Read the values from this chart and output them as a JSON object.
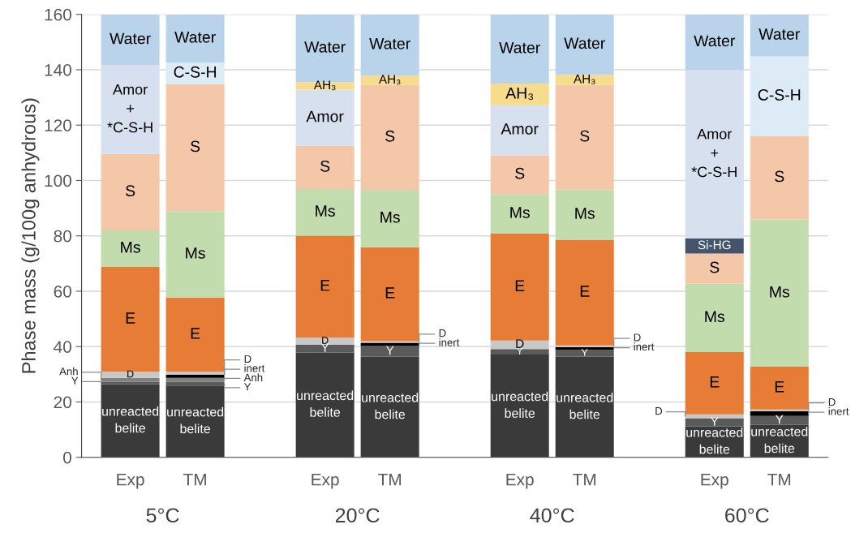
{
  "chart_data": {
    "type": "bar",
    "stacked": true,
    "ylabel": "Phase mass (g/100g anhydrous)",
    "categories": [
      "Exp",
      "TM",
      "Exp",
      "TM",
      "Exp",
      "TM",
      "Exp",
      "TM"
    ],
    "annotations": [
      "5°C",
      "20°C",
      "40°C",
      "60°C"
    ],
    "ylim": [
      0,
      160
    ],
    "yticks": [
      0,
      20,
      40,
      60,
      80,
      100,
      120,
      140,
      160
    ],
    "grid": "y",
    "series": [
      {
        "color": "#3a3a3a",
        "values": [
          26.4,
          25.9,
          37.8,
          36.3,
          37.1,
          36.3,
          11.1,
          11.7
        ],
        "value_labels": [
          "unreacted\nbelite",
          "unreacted\nbelite",
          "unreacted\nbelite",
          "unreacted\nbelite",
          "unreacted\nbelite",
          "unreacted\nbelite",
          "unreacted\nbelite",
          "unreacted\nbelite"
        ]
      },
      {
        "color": "#5a5a5a",
        "values": [
          0.9,
          1.4,
          2.9,
          3.9,
          2.0,
          2.5,
          3.0,
          3.2
        ],
        "value_labels": [
          "Y",
          "Y",
          "Y",
          "Y",
          "Y",
          "Y",
          "Y",
          "Y"
        ]
      },
      {
        "color": "#808080",
        "values": [
          1.4,
          1.4,
          null,
          null,
          null,
          null,
          null,
          null
        ],
        "value_labels": [
          "Anh",
          "Anh",
          null,
          null,
          null,
          null,
          null,
          null
        ]
      },
      {
        "color": "#000000",
        "values": [
          null,
          1.2,
          null,
          1.2,
          null,
          1.0,
          null,
          1.7
        ],
        "value_labels": [
          null,
          "inert",
          null,
          "inert",
          null,
          "inert",
          null,
          "inert"
        ]
      },
      {
        "color": "#c8c8c8",
        "values": [
          2.2,
          1.0,
          2.5,
          0.6,
          3.1,
          0.6,
          1.4,
          0.7
        ],
        "value_labels": [
          "D",
          "D",
          "D",
          "D",
          "D",
          "D",
          "D",
          "D"
        ]
      },
      {
        "color": "#e67c35",
        "values": [
          37.9,
          26.8,
          36.9,
          33.9,
          38.6,
          38.2,
          22.5,
          15.4
        ],
        "value_labels": [
          "E",
          "E",
          "E",
          "E",
          "E",
          "E",
          "E",
          "E"
        ]
      },
      {
        "color": "#c2dcae",
        "values": [
          13.2,
          31.2,
          16.8,
          20.7,
          14.3,
          18.1,
          24.7,
          53.2
        ],
        "value_labels": [
          "Ms",
          "Ms",
          "Ms",
          "Ms",
          "Ms",
          "Ms",
          "Ms",
          "Ms"
        ]
      },
      {
        "color": "#f4c7a8",
        "values": [
          27.6,
          45.9,
          15.6,
          37.9,
          14.0,
          37.8,
          10.9,
          30.2
        ],
        "value_labels": [
          "S",
          "S",
          "S",
          "S",
          "S",
          "S",
          "S",
          "S"
        ]
      },
      {
        "color": "#44546a",
        "values": [
          null,
          null,
          null,
          null,
          null,
          null,
          5.5,
          null
        ],
        "value_labels": [
          null,
          null,
          null,
          null,
          null,
          null,
          "Si-HG",
          null
        ]
      },
      {
        "color": "#d6e0ef",
        "values": [
          32.0,
          null,
          20.3,
          null,
          18.1,
          null,
          60.8,
          null
        ],
        "value_labels": [
          "Amor\n+\n*C-S-H",
          null,
          "Amor",
          null,
          "Amor",
          null,
          "Amor\n+\n*C-S-H",
          null
        ]
      },
      {
        "color": "#f7dc8e",
        "values": [
          null,
          null,
          2.7,
          3.4,
          7.8,
          3.7,
          null,
          null
        ],
        "value_labels": [
          null,
          null,
          "AH₃",
          "AH₃",
          "AH₃",
          "AH₃",
          null,
          null
        ]
      },
      {
        "color": "#ddebf7",
        "values": [
          null,
          7.8,
          null,
          null,
          null,
          null,
          null,
          28.7
        ],
        "value_labels": [
          null,
          "C-S-H",
          null,
          null,
          null,
          null,
          null,
          "C-S-H"
        ]
      },
      {
        "color": "#b9d4ea",
        "values": [
          18.4,
          17.4,
          24.5,
          22.1,
          25.0,
          21.8,
          20.1,
          15.2
        ],
        "value_labels": [
          "Water",
          "Water",
          "Water",
          "Water",
          "Water",
          "Water",
          "Water",
          "Water"
        ]
      }
    ]
  }
}
